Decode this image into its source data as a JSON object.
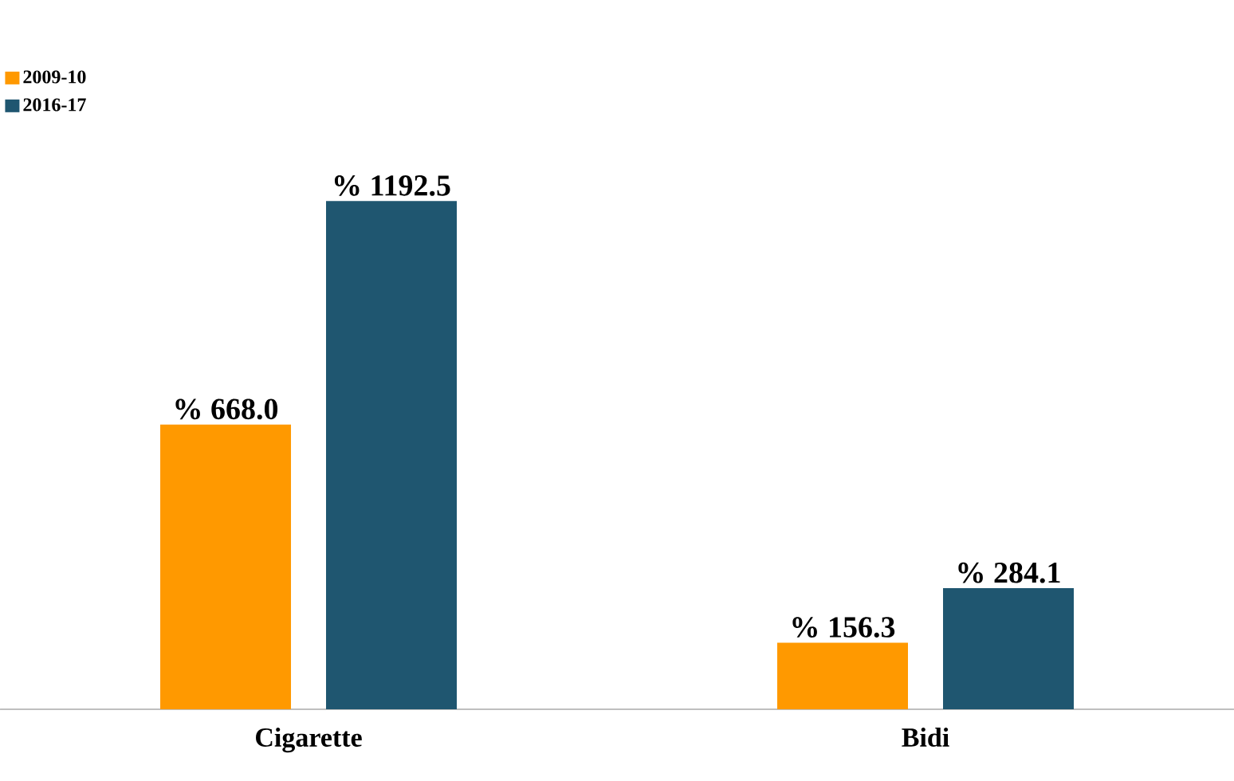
{
  "chart_data": {
    "type": "bar",
    "categories": [
      "Cigarette",
      "Bidi"
    ],
    "series": [
      {
        "name": "2009-10",
        "color": "#ff9900",
        "values": [
          668.0,
          156.3
        ],
        "value_labels": [
          "% 668.0",
          "% 156.3"
        ]
      },
      {
        "name": "2016-17",
        "color": "#1f5670",
        "values": [
          1192.5,
          284.1
        ],
        "value_labels": [
          "% 1192.5",
          "% 284.1"
        ]
      }
    ],
    "legend": "top left"
  }
}
